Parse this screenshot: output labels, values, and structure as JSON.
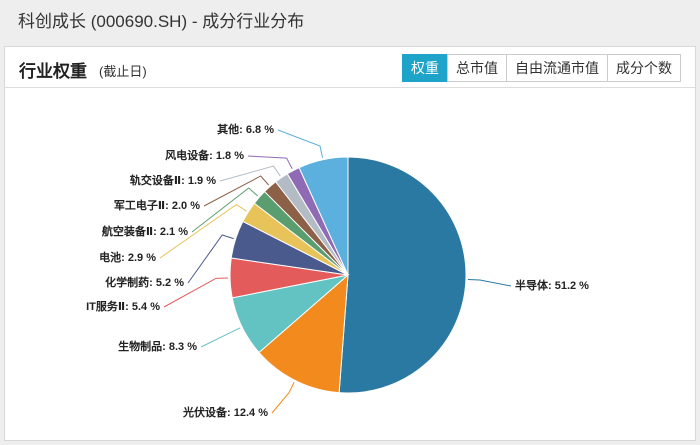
{
  "header": {
    "title": "科创成长 (000690.SH) - 成分行业分布"
  },
  "panel": {
    "title": "行业权重",
    "subtitle": "(截止日)",
    "tabs": [
      "权重",
      "总市值",
      "自由流通市值",
      "成分个数"
    ]
  },
  "chart_data": {
    "type": "pie",
    "values": [
      51.2,
      12.4,
      8.3,
      5.4,
      5.2,
      2.9,
      2.1,
      2.0,
      1.9,
      1.8,
      6.8
    ],
    "value_labels": [
      "半导体: 51.2 %",
      "光伏设备: 12.4 %",
      "生物制品: 8.3 %",
      "IT服务Ⅱ: 5.4 %",
      "化学制药: 5.2 %",
      "电池: 2.9 %",
      "航空装备Ⅱ: 2.1 %",
      "军工电子Ⅱ: 2.0 %",
      "轨交设备Ⅱ: 1.9 %",
      "风电设备: 1.8 %",
      "其他: 6.8 %"
    ],
    "colors": [
      "#2a79a3",
      "#f28a1e",
      "#63c2c2",
      "#e35b5b",
      "#4b5a8d",
      "#e8c35a",
      "#5a9e70",
      "#8c6147",
      "#b3bcc4",
      "#8e6bb4",
      "#5cb0de"
    ]
  }
}
